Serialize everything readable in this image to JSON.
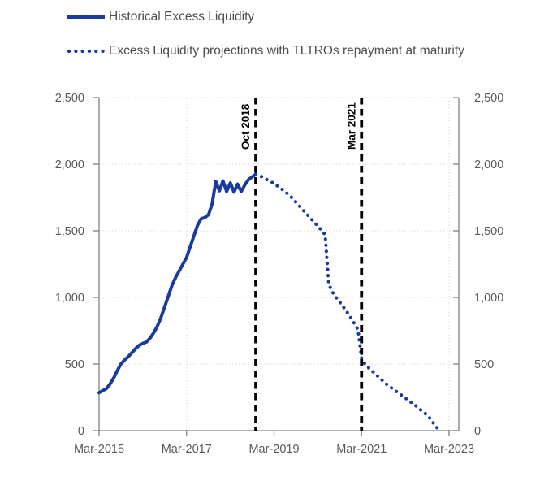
{
  "page": {
    "background": "#FFFFFF"
  },
  "legend": {
    "historical": {
      "label": "Historical Excess Liquidity",
      "marker": "solid-line"
    },
    "projection": {
      "label": "Excess Liquidity projections with TLTROs repayment at maturity",
      "marker": "dotted-line"
    }
  },
  "colors": {
    "series_blue": "#1B3A9D",
    "annotation_line": "#000000",
    "annotation_text": "#000000",
    "axis": "#808080",
    "gridline": "#D9D9D9",
    "tick_label": "#595959",
    "legend_text": "#4D4D4D"
  },
  "chart_data": {
    "type": "line",
    "title": "",
    "xlabel": "",
    "ylabel": "",
    "grid": true,
    "legend_position": "top-left",
    "x_axis": {
      "unit": "months since Mar-2015",
      "tick_labels": [
        "Mar-2015",
        "Mar-2017",
        "Mar-2019",
        "Mar-2021",
        "Mar-2023"
      ],
      "tick_months": [
        0,
        24,
        48,
        72,
        96
      ],
      "range_months": [
        0,
        98.7
      ]
    },
    "y_axis": {
      "lim": [
        0,
        2500
      ],
      "ticks": [
        0,
        500,
        1000,
        1500,
        2000,
        2500
      ],
      "tick_labels": [
        "0",
        "500",
        "1,000",
        "1,500",
        "2,000",
        "2,500"
      ],
      "sides": [
        "left",
        "right"
      ]
    },
    "annotations": [
      {
        "label": "Oct 2018",
        "month": 43
      },
      {
        "label": "Mar 2021",
        "month": 72
      }
    ],
    "series": [
      {
        "name": "Historical Excess Liquidity",
        "style": "solid",
        "color": "#1B3A9D",
        "frequency": "monthly",
        "start_date": "Mar-2015",
        "start_month": 0,
        "values": [
          285,
          300,
          315,
          350,
          395,
          450,
          500,
          530,
          555,
          585,
          615,
          640,
          655,
          665,
          695,
          735,
          785,
          850,
          930,
          1010,
          1090,
          1150,
          1200,
          1250,
          1300,
          1380,
          1460,
          1540,
          1590,
          1600,
          1620,
          1700,
          1870,
          1800,
          1875,
          1795,
          1860,
          1790,
          1850,
          1795,
          1845,
          1885,
          1905,
          1925
        ]
      },
      {
        "name": "Excess Liquidity projections with TLTROs repayment at maturity",
        "style": "dotted",
        "color": "#1B3A9D",
        "frequency": "monthly",
        "start_date": "Oct-2018",
        "start_month": 43,
        "values": [
          1925,
          1915,
          1900,
          1885,
          1870,
          1855,
          1835,
          1815,
          1795,
          1770,
          1745,
          1715,
          1685,
          1655,
          1625,
          1595,
          1565,
          1535,
          1505,
          1470,
          1100,
          1040,
          1000,
          965,
          930,
          890,
          850,
          805,
          760,
          545,
          495,
          470,
          445,
          420,
          395,
          370,
          345,
          325,
          305,
          285,
          265,
          245,
          225,
          205,
          185,
          160,
          140,
          115,
          85,
          45,
          12
        ]
      }
    ]
  }
}
